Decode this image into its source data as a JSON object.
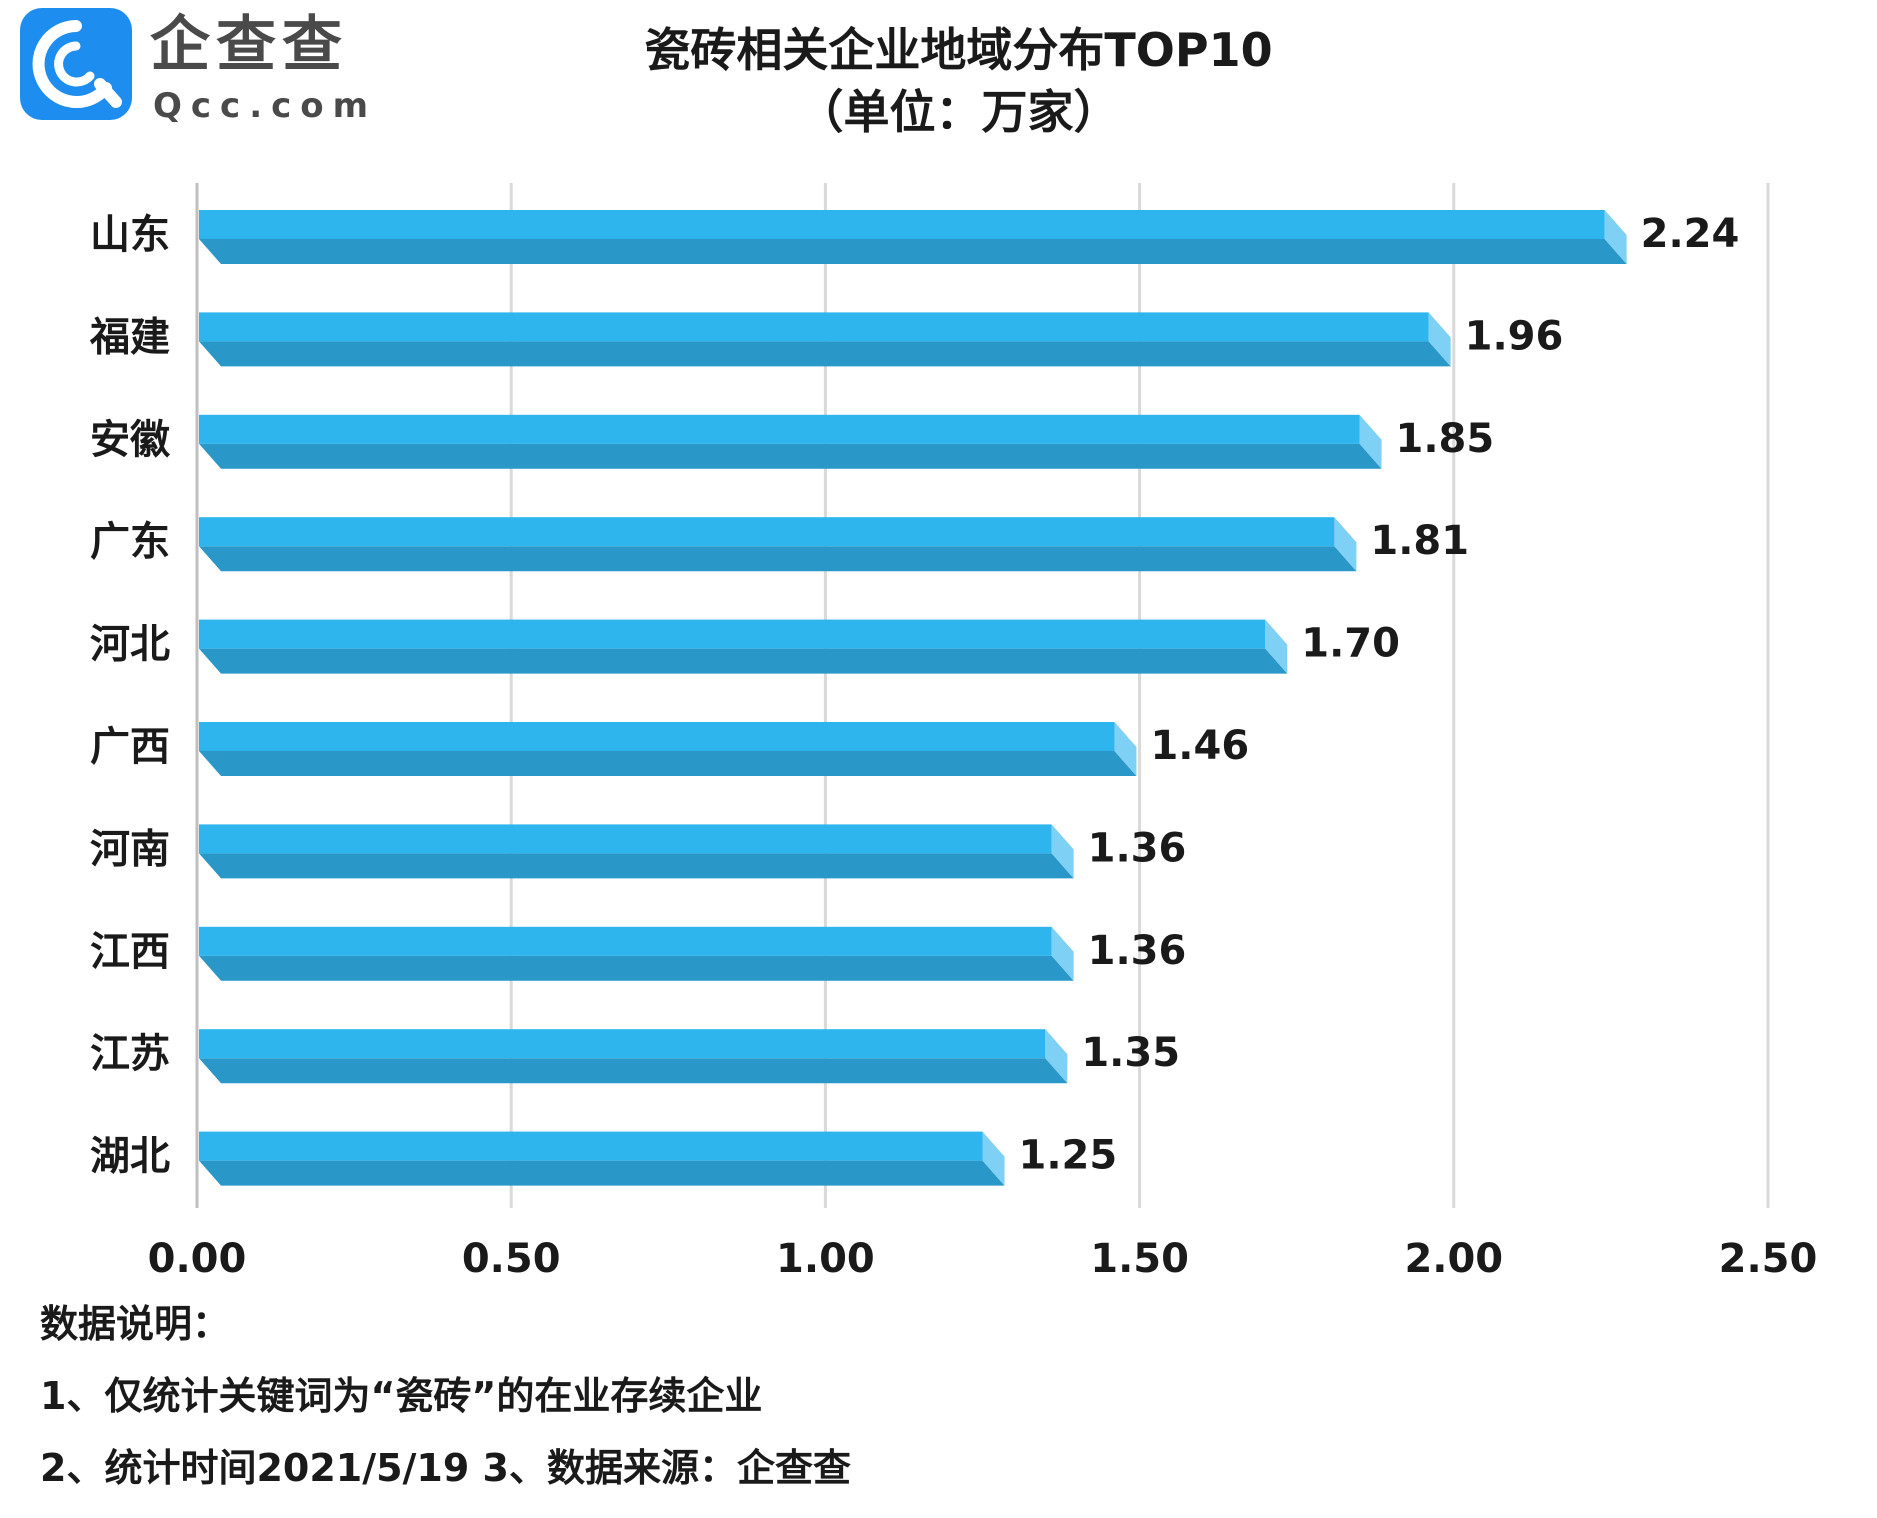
{
  "logo": {
    "name": "企查查",
    "domain": "Qcc.com"
  },
  "colors": {
    "bar_top": "#2fb5ee",
    "bar_bottom": "#2a97c9",
    "bar_end": "#7ed0f5",
    "grid": "#d9d9d9",
    "logo": "#1e8df0"
  },
  "chart_data": {
    "type": "bar",
    "orientation": "horizontal",
    "title": "瓷砖相关企业地域分布TOP10",
    "subtitle": "（单位：万家）",
    "categories": [
      "山东",
      "福建",
      "安徽",
      "广东",
      "河北",
      "广西",
      "河南",
      "江西",
      "江苏",
      "湖北"
    ],
    "values": [
      2.24,
      1.96,
      1.85,
      1.81,
      1.7,
      1.46,
      1.36,
      1.36,
      1.35,
      1.25
    ],
    "value_labels": [
      "2.24",
      "1.96",
      "1.85",
      "1.81",
      "1.70",
      "1.46",
      "1.36",
      "1.36",
      "1.35",
      "1.25"
    ],
    "xlim": [
      0,
      2.5
    ],
    "x_ticks": [
      0,
      0.5,
      1.0,
      1.5,
      2.0,
      2.5
    ],
    "x_tick_labels": [
      "0.00",
      "0.50",
      "1.00",
      "1.50",
      "2.00",
      "2.50"
    ],
    "grid": "vertical",
    "legend": "none"
  },
  "notes": {
    "heading": "数据说明：",
    "line1": "1、仅统计关键词为“瓷砖”的在业存续企业",
    "line2": "2、统计时间2021/5/19    3、数据来源：企查查"
  }
}
